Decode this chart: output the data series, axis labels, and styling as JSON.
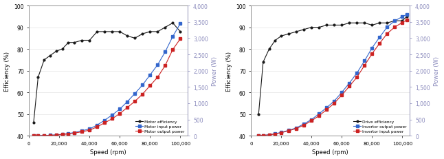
{
  "left": {
    "speed": [
      3000,
      6000,
      10000,
      14000,
      18000,
      22000,
      26000,
      30000,
      35000,
      40000,
      45000,
      50000,
      55000,
      60000,
      65000,
      70000,
      75000,
      80000,
      85000,
      90000,
      95000,
      100000
    ],
    "motor_efficiency": [
      46,
      67,
      75,
      77,
      79,
      80,
      83,
      83,
      84,
      84,
      88,
      88,
      88,
      88,
      86,
      85,
      87,
      88,
      88,
      90,
      92,
      88
    ],
    "motor_input_power": [
      2,
      5,
      10,
      18,
      30,
      45,
      70,
      100,
      155,
      210,
      330,
      480,
      640,
      820,
      1050,
      1300,
      1560,
      1870,
      2180,
      2580,
      3050,
      3450
    ],
    "motor_output_power": [
      1,
      3,
      7,
      14,
      23,
      37,
      58,
      82,
      125,
      172,
      275,
      398,
      525,
      682,
      870,
      1060,
      1280,
      1540,
      1800,
      2160,
      2650,
      2980
    ],
    "ylim_eff": [
      40,
      100
    ],
    "ylim_power": [
      0,
      4000
    ],
    "yticks_eff": [
      40,
      50,
      60,
      70,
      80,
      90,
      100
    ],
    "yticks_power": [
      0,
      500,
      1000,
      1500,
      2000,
      2500,
      3000,
      3500,
      4000
    ],
    "xticks": [
      0,
      20000,
      40000,
      60000,
      80000,
      100000
    ],
    "xlabel": "Speed (rpm)",
    "ylabel_left": "Efficiency (%)",
    "ylabel_right": "Power (W)",
    "legend": [
      "Motor efficiency",
      "Motor input power",
      "Motor output power"
    ]
  },
  "right": {
    "speed": [
      5000,
      8000,
      12000,
      16000,
      20000,
      25000,
      30000,
      35000,
      40000,
      45000,
      50000,
      55000,
      60000,
      65000,
      70000,
      75000,
      80000,
      85000,
      90000,
      95000,
      100000,
      103000
    ],
    "drive_efficiency": [
      50,
      74,
      80,
      84,
      86,
      87,
      88,
      89,
      90,
      90,
      91,
      91,
      91,
      92,
      92,
      92,
      91,
      92,
      92,
      93,
      93,
      95
    ],
    "invertor_output_power": [
      5,
      12,
      28,
      55,
      95,
      155,
      225,
      330,
      460,
      620,
      800,
      1000,
      1250,
      1520,
      1800,
      2160,
      2520,
      2840,
      3140,
      3340,
      3480,
      3560
    ],
    "invertor_input_power": [
      6,
      14,
      32,
      62,
      108,
      168,
      245,
      365,
      500,
      678,
      866,
      1068,
      1335,
      1620,
      1930,
      2300,
      2700,
      3030,
      3340,
      3530,
      3660,
      3730
    ],
    "ylim_eff": [
      40,
      100
    ],
    "ylim_power": [
      0,
      4000
    ],
    "yticks_eff": [
      40,
      50,
      60,
      70,
      80,
      90,
      100
    ],
    "yticks_power": [
      0,
      500,
      1000,
      1500,
      2000,
      2500,
      3000,
      3500,
      4000
    ],
    "xticks": [
      0,
      20000,
      40000,
      60000,
      80000,
      100000
    ],
    "xlabel": "Speed (rpm)",
    "ylabel_left": "Efficiency (%)",
    "ylabel_right": "Power (W)",
    "legend": [
      "Drive efficiency",
      "Invertor output power",
      "Invertor input power"
    ]
  },
  "colors": {
    "efficiency_line": "#1a1a1a",
    "input_power_line": "#3366cc",
    "output_power_line": "#cc2222"
  },
  "right_ylabel_color": "#8888bb",
  "bg_color": "#ffffff"
}
